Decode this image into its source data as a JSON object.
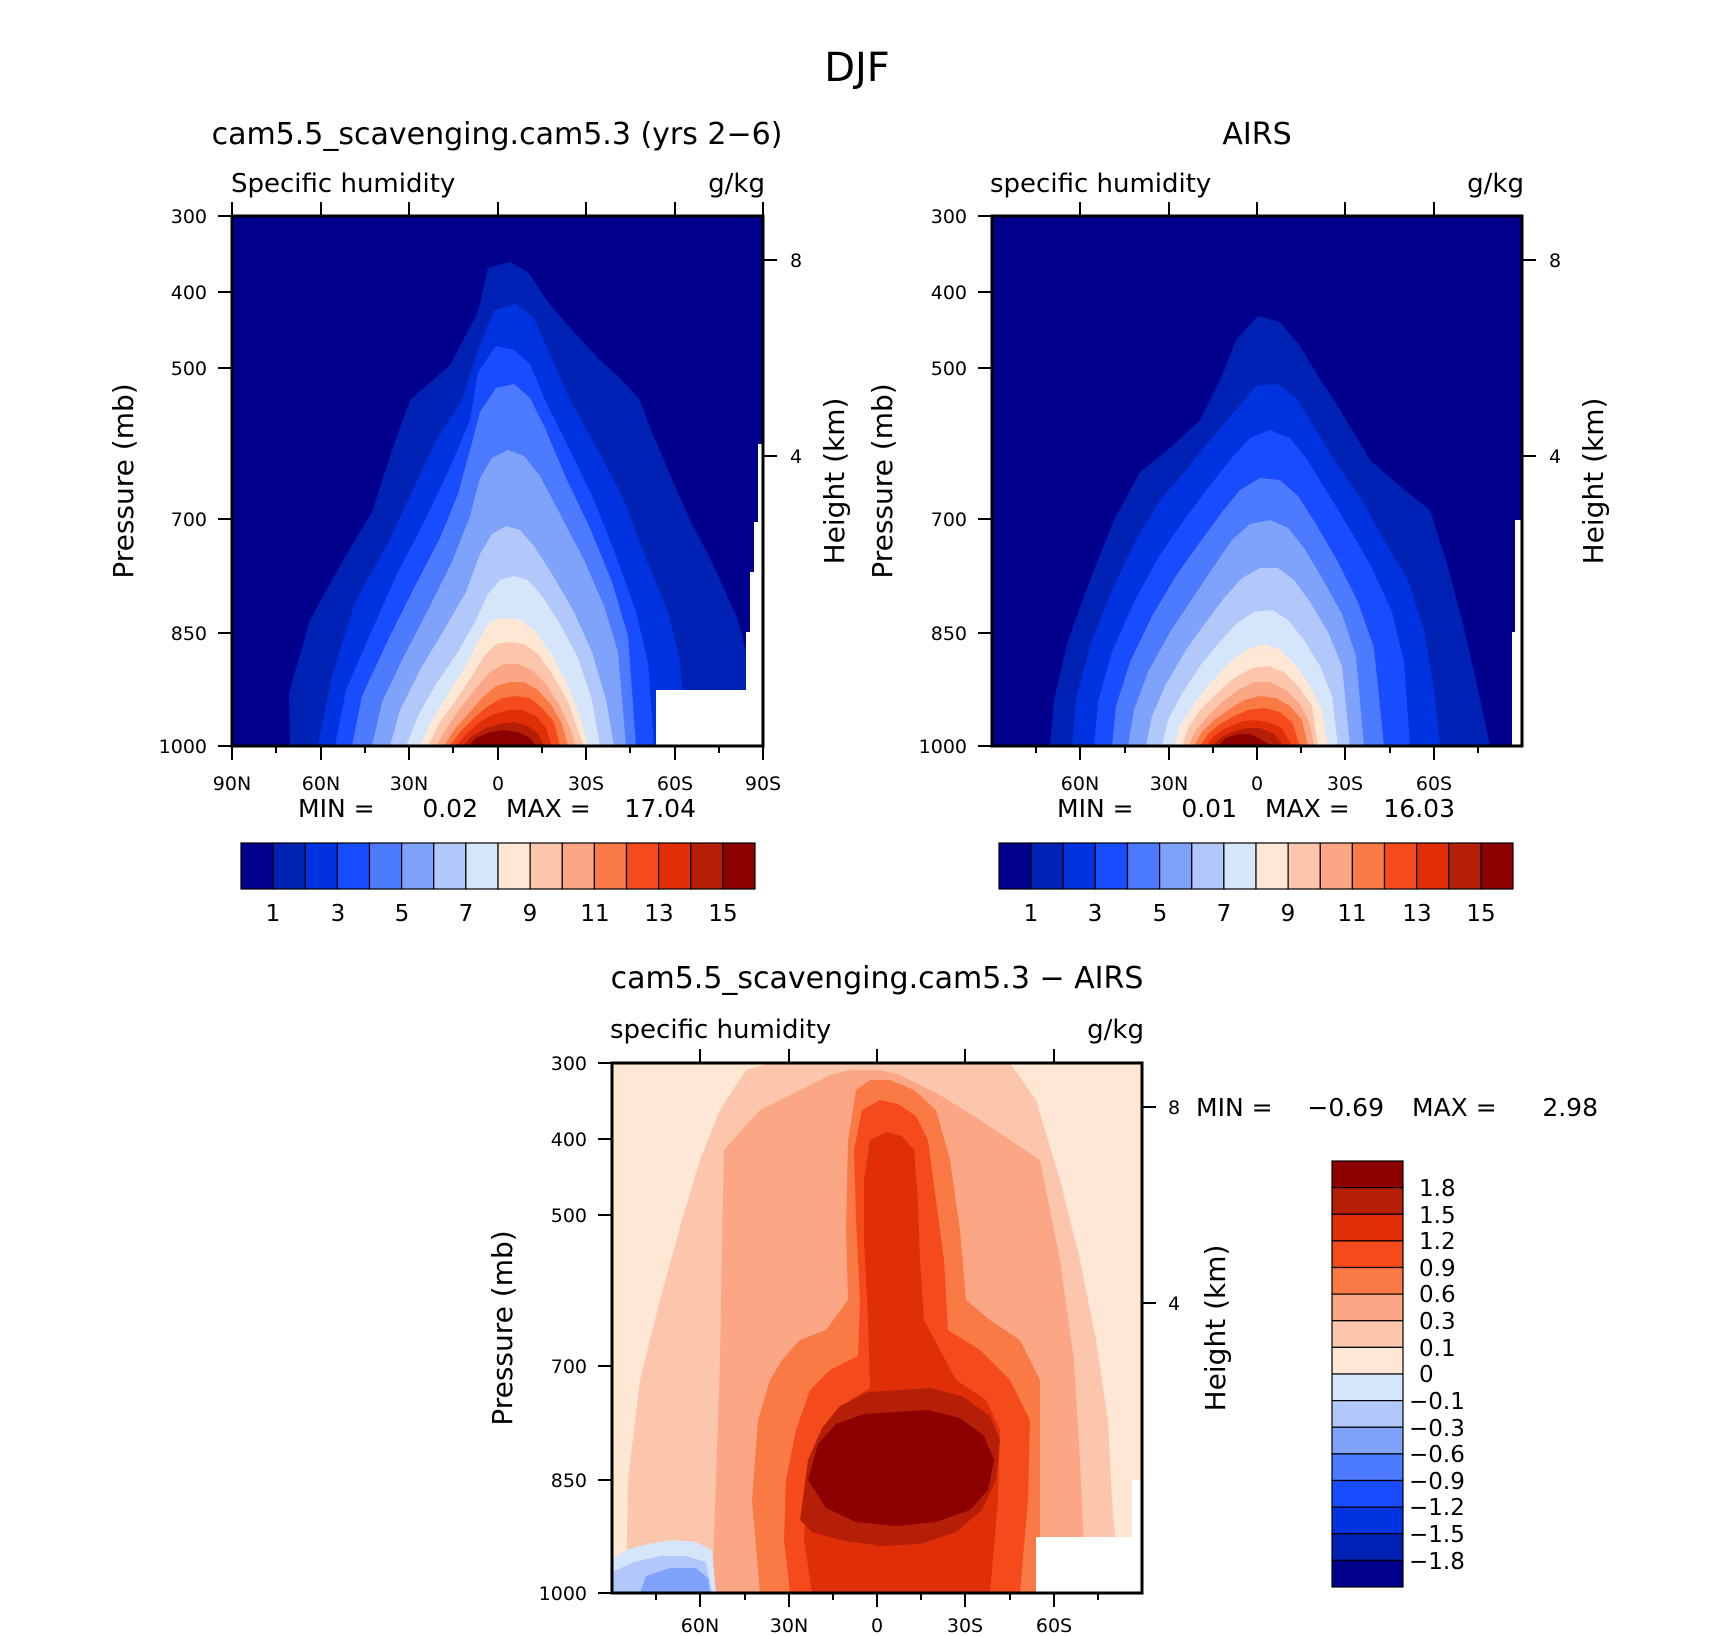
{
  "figure_title": "DJF",
  "panels": [
    {
      "id": "model",
      "title": "cam5.5_scavenging.cam5.3 (yrs 2−6)",
      "left_label": "Specific humidity",
      "right_label": "g/kg",
      "ylabel": "Pressure (mb)",
      "ylabel_right": "Height (km)",
      "min_label": "MIN =",
      "min_value": "0.02",
      "max_label": "MAX =",
      "max_value": "17.04",
      "xticks": [
        "90N",
        "60N",
        "30N",
        "0",
        "30S",
        "60S",
        "90S"
      ],
      "yticks": [
        "300",
        "400",
        "500",
        "700",
        "850",
        "1000"
      ],
      "height_ticks": [
        "8",
        "4"
      ],
      "colorbar_labels": [
        "1",
        "3",
        "5",
        "7",
        "9",
        "11",
        "13",
        "15"
      ]
    },
    {
      "id": "obs",
      "title": "AIRS",
      "left_label": "specific humidity",
      "right_label": "g/kg",
      "ylabel": "Pressure (mb)",
      "ylabel_right": "Height (km)",
      "min_label": "MIN =",
      "min_value": "0.01",
      "max_label": "MAX =",
      "max_value": "16.03",
      "xticks": [
        "60N",
        "30N",
        "0",
        "30S",
        "60S"
      ],
      "yticks": [
        "300",
        "400",
        "500",
        "700",
        "850",
        "1000"
      ],
      "height_ticks": [
        "8",
        "4"
      ],
      "colorbar_labels": [
        "1",
        "3",
        "5",
        "7",
        "9",
        "11",
        "13",
        "15"
      ]
    },
    {
      "id": "diff",
      "title": "cam5.5_scavenging.cam5.3 − AIRS",
      "left_label": "specific humidity",
      "right_label": "g/kg",
      "ylabel": "Pressure (mb)",
      "ylabel_right": "Height (km)",
      "min_label": "MIN =",
      "min_value": "−0.69",
      "max_label": "MAX =",
      "max_value": "2.98",
      "xticks": [
        "60N",
        "30N",
        "0",
        "30S",
        "60S"
      ],
      "yticks": [
        "300",
        "400",
        "500",
        "700",
        "850",
        "1000"
      ],
      "height_ticks": [
        "8",
        "4"
      ],
      "colorbar_labels": [
        "1.8",
        "1.5",
        "1.2",
        "0.9",
        "0.6",
        "0.3",
        "0.1",
        "0",
        "−0.1",
        "−0.3",
        "−0.6",
        "−0.9",
        "−1.2",
        "−1.5",
        "−1.8"
      ]
    }
  ],
  "colors": {
    "abs_scale": [
      "#00008c",
      "#0022b4",
      "#0033e0",
      "#1a4cff",
      "#4d7bff",
      "#7fa2fa",
      "#b2c8fb",
      "#d6e6fa",
      "#ffe7d6",
      "#fcc6ad",
      "#fba684",
      "#fa7a46",
      "#f54b1c",
      "#e02e08",
      "#b51e07",
      "#8c0000"
    ],
    "diff_scale": [
      "#8c0000",
      "#b51e07",
      "#e02e08",
      "#f54b1c",
      "#fa7a46",
      "#fba684",
      "#fcc6ad",
      "#ffe7d6",
      "#d6e6fa",
      "#b2c8fb",
      "#7fa2fa",
      "#4d7bff",
      "#1a4cff",
      "#0033e0",
      "#0022b4",
      "#00008c"
    ]
  },
  "chart_data": [
    {
      "type": "heatmap",
      "title": "cam5.5_scavenging.cam5.3 (yrs 2−6)",
      "variable": "Specific humidity",
      "units": "g/kg",
      "xlabel": "",
      "ylabel": "Pressure (mb)",
      "y2label": "Height (km)",
      "x_ticks": [
        "90N",
        "60N",
        "30N",
        "0",
        "30S",
        "60S",
        "90S"
      ],
      "y_ticks": [
        300,
        400,
        500,
        700,
        850,
        1000
      ],
      "height_ticks_km": [
        8,
        4
      ],
      "y_scale": "log",
      "levels": [
        1,
        2,
        3,
        4,
        5,
        6,
        7,
        8,
        9,
        10,
        11,
        12,
        13,
        14,
        15
      ],
      "min": 0.02,
      "max": 17.04,
      "peak_latitude": 0,
      "peak_pressure_mb": 1000
    },
    {
      "type": "heatmap",
      "title": "AIRS",
      "variable": "specific humidity",
      "units": "g/kg",
      "xlabel": "",
      "ylabel": "Pressure (mb)",
      "y2label": "Height (km)",
      "x_ticks": [
        "60N",
        "30N",
        "0",
        "30S",
        "60S"
      ],
      "y_ticks": [
        300,
        400,
        500,
        700,
        850,
        1000
      ],
      "height_ticks_km": [
        8,
        4
      ],
      "y_scale": "log",
      "levels": [
        1,
        2,
        3,
        4,
        5,
        6,
        7,
        8,
        9,
        10,
        11,
        12,
        13,
        14,
        15
      ],
      "min": 0.01,
      "max": 16.03,
      "peak_latitude": 0,
      "peak_pressure_mb": 1000
    },
    {
      "type": "heatmap",
      "title": "cam5.5_scavenging.cam5.3 − AIRS",
      "variable": "specific humidity",
      "units": "g/kg",
      "xlabel": "",
      "ylabel": "Pressure (mb)",
      "y2label": "Height (km)",
      "x_ticks": [
        "60N",
        "30N",
        "0",
        "30S",
        "60S"
      ],
      "y_ticks": [
        300,
        400,
        500,
        700,
        850,
        1000
      ],
      "height_ticks_km": [
        8,
        4
      ],
      "y_scale": "log",
      "levels": [
        -1.8,
        -1.5,
        -1.2,
        -0.9,
        -0.6,
        -0.3,
        -0.1,
        0,
        0.1,
        0.3,
        0.6,
        0.9,
        1.2,
        1.5,
        1.8
      ],
      "min": -0.69,
      "max": 2.98,
      "peak_latitude": 0,
      "peak_pressure_mb": 850
    }
  ]
}
